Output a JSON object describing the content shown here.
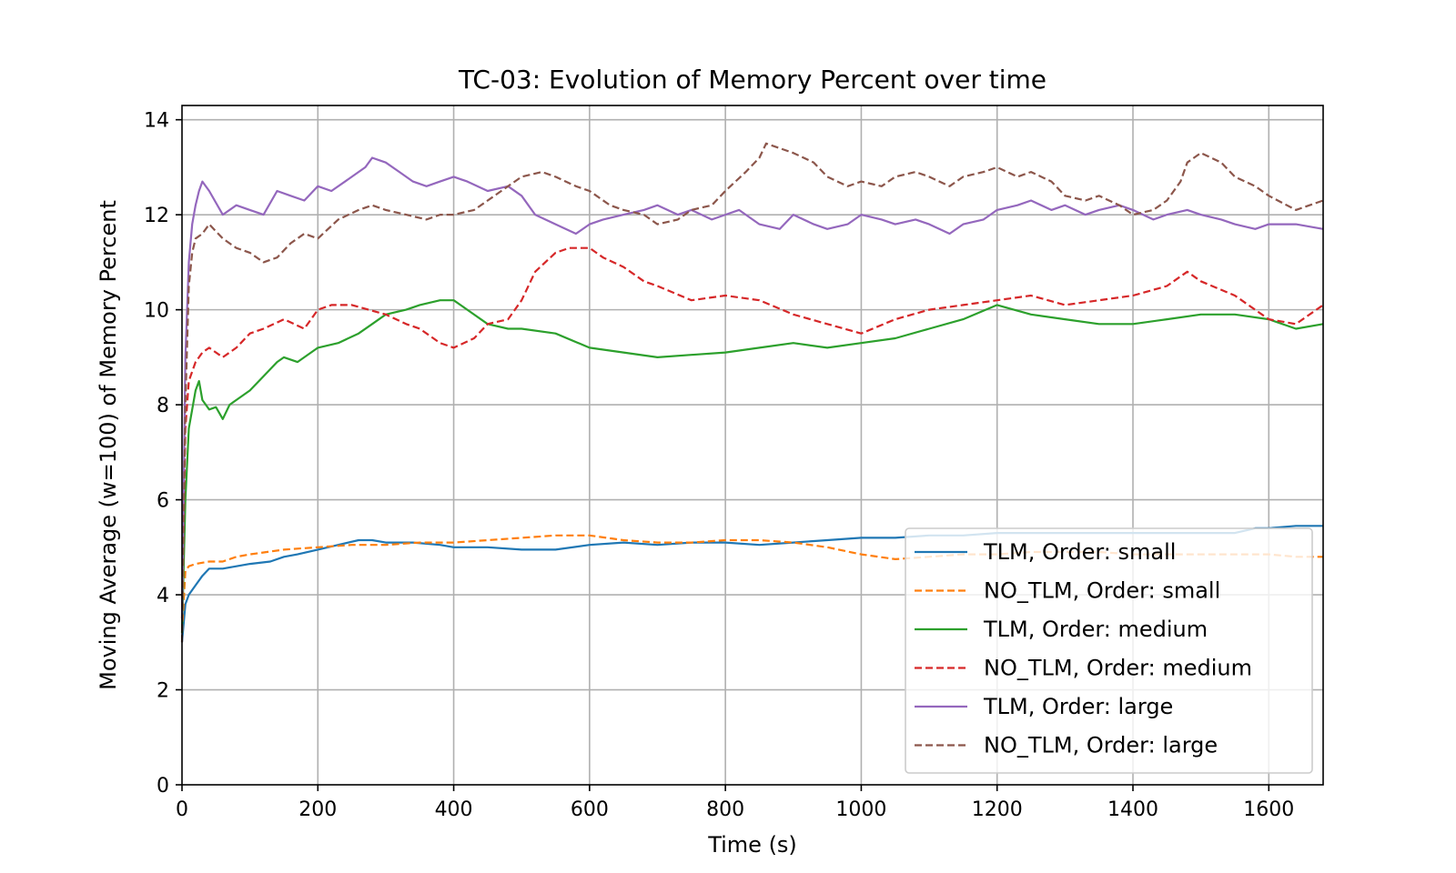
{
  "chart_data": {
    "type": "line",
    "title": "TC-03: Evolution of Memory Percent over time",
    "xlabel": "Time (s)",
    "ylabel": "Moving Average (w=100) of Memory Percent",
    "xlim": [
      0,
      1680
    ],
    "ylim": [
      0,
      14.3
    ],
    "xticks": [
      0,
      200,
      400,
      600,
      800,
      1000,
      1200,
      1400,
      1600
    ],
    "yticks": [
      0,
      2,
      4,
      6,
      8,
      10,
      12,
      14
    ],
    "grid": true,
    "legend_position": "lower right",
    "series": [
      {
        "name": "TLM, Order: small",
        "color": "#1f77b4",
        "dash": "solid",
        "x": [
          0,
          5,
          10,
          20,
          30,
          40,
          60,
          80,
          100,
          130,
          150,
          170,
          200,
          230,
          260,
          280,
          300,
          340,
          380,
          400,
          450,
          500,
          550,
          600,
          650,
          700,
          750,
          800,
          850,
          900,
          950,
          1000,
          1050,
          1100,
          1150,
          1200,
          1250,
          1300,
          1350,
          1400,
          1450,
          1500,
          1550,
          1580,
          1600,
          1640,
          1680
        ],
        "y": [
          3.0,
          3.8,
          4.0,
          4.2,
          4.4,
          4.55,
          4.55,
          4.6,
          4.65,
          4.7,
          4.8,
          4.85,
          4.95,
          5.05,
          5.15,
          5.15,
          5.1,
          5.1,
          5.05,
          5.0,
          5.0,
          4.95,
          4.95,
          5.05,
          5.1,
          5.05,
          5.1,
          5.1,
          5.05,
          5.1,
          5.15,
          5.2,
          5.2,
          5.25,
          5.25,
          5.3,
          5.3,
          5.3,
          5.3,
          5.3,
          5.3,
          5.3,
          5.3,
          5.4,
          5.4,
          5.45,
          5.45
        ]
      },
      {
        "name": "NO_TLM, Order: small",
        "color": "#ff7f0e",
        "dash": "dashed",
        "x": [
          0,
          5,
          10,
          20,
          40,
          60,
          80,
          100,
          150,
          200,
          250,
          300,
          350,
          400,
          450,
          500,
          550,
          600,
          650,
          700,
          750,
          800,
          850,
          900,
          950,
          1000,
          1050,
          1100,
          1150,
          1200,
          1250,
          1300,
          1350,
          1400,
          1450,
          1500,
          1550,
          1600,
          1640,
          1680
        ],
        "y": [
          3.2,
          4.5,
          4.6,
          4.65,
          4.7,
          4.7,
          4.8,
          4.85,
          4.95,
          5.0,
          5.05,
          5.05,
          5.1,
          5.1,
          5.15,
          5.2,
          5.25,
          5.25,
          5.15,
          5.1,
          5.1,
          5.15,
          5.15,
          5.1,
          5.0,
          4.85,
          4.75,
          4.8,
          4.85,
          4.85,
          4.9,
          4.9,
          4.9,
          4.85,
          4.85,
          4.85,
          4.85,
          4.85,
          4.8,
          4.8
        ]
      },
      {
        "name": "TLM, Order: medium",
        "color": "#2ca02c",
        "dash": "solid",
        "x": [
          0,
          5,
          10,
          20,
          25,
          30,
          40,
          50,
          60,
          70,
          80,
          100,
          120,
          140,
          150,
          170,
          200,
          230,
          260,
          280,
          300,
          330,
          350,
          380,
          400,
          420,
          450,
          480,
          500,
          550,
          600,
          650,
          700,
          750,
          800,
          850,
          900,
          950,
          1000,
          1050,
          1100,
          1150,
          1200,
          1250,
          1300,
          1350,
          1400,
          1450,
          1500,
          1550,
          1600,
          1640,
          1680
        ],
        "y": [
          3.2,
          6.0,
          7.5,
          8.3,
          8.5,
          8.1,
          7.9,
          7.95,
          7.7,
          8.0,
          8.1,
          8.3,
          8.6,
          8.9,
          9.0,
          8.9,
          9.2,
          9.3,
          9.5,
          9.7,
          9.9,
          10.0,
          10.1,
          10.2,
          10.2,
          10.0,
          9.7,
          9.6,
          9.6,
          9.5,
          9.2,
          9.1,
          9.0,
          9.05,
          9.1,
          9.2,
          9.3,
          9.2,
          9.3,
          9.4,
          9.6,
          9.8,
          10.1,
          9.9,
          9.8,
          9.7,
          9.7,
          9.8,
          9.9,
          9.9,
          9.8,
          9.6,
          9.7
        ]
      },
      {
        "name": "NO_TLM, Order: medium",
        "color": "#d62728",
        "dash": "dashed",
        "x": [
          0,
          5,
          10,
          20,
          30,
          40,
          60,
          80,
          100,
          120,
          150,
          180,
          200,
          220,
          250,
          300,
          330,
          350,
          380,
          400,
          430,
          450,
          480,
          500,
          520,
          550,
          570,
          600,
          620,
          650,
          680,
          700,
          750,
          800,
          850,
          900,
          950,
          1000,
          1050,
          1100,
          1150,
          1200,
          1250,
          1300,
          1350,
          1400,
          1450,
          1480,
          1500,
          1550,
          1600,
          1640,
          1680
        ],
        "y": [
          3.5,
          7.5,
          8.5,
          8.9,
          9.1,
          9.2,
          9.0,
          9.2,
          9.5,
          9.6,
          9.8,
          9.6,
          10.0,
          10.1,
          10.1,
          9.9,
          9.7,
          9.6,
          9.3,
          9.2,
          9.4,
          9.7,
          9.8,
          10.2,
          10.8,
          11.2,
          11.3,
          11.3,
          11.1,
          10.9,
          10.6,
          10.5,
          10.2,
          10.3,
          10.2,
          9.9,
          9.7,
          9.5,
          9.8,
          10.0,
          10.1,
          10.2,
          10.3,
          10.1,
          10.2,
          10.3,
          10.5,
          10.8,
          10.6,
          10.3,
          9.8,
          9.7,
          10.1
        ]
      },
      {
        "name": "TLM, Order: large",
        "color": "#9467bd",
        "dash": "solid",
        "x": [
          0,
          5,
          10,
          15,
          20,
          25,
          30,
          40,
          60,
          80,
          100,
          120,
          140,
          160,
          180,
          200,
          220,
          250,
          270,
          280,
          300,
          320,
          340,
          360,
          380,
          400,
          420,
          450,
          480,
          500,
          520,
          550,
          580,
          600,
          620,
          650,
          680,
          700,
          730,
          750,
          780,
          800,
          820,
          850,
          880,
          900,
          930,
          950,
          980,
          1000,
          1030,
          1050,
          1080,
          1100,
          1130,
          1150,
          1180,
          1200,
          1230,
          1250,
          1280,
          1300,
          1330,
          1350,
          1380,
          1400,
          1430,
          1450,
          1480,
          1500,
          1530,
          1550,
          1580,
          1600,
          1640,
          1680
        ],
        "y": [
          3.5,
          9.0,
          11.0,
          11.8,
          12.2,
          12.5,
          12.7,
          12.5,
          12.0,
          12.2,
          12.1,
          12.0,
          12.5,
          12.4,
          12.3,
          12.6,
          12.5,
          12.8,
          13.0,
          13.2,
          13.1,
          12.9,
          12.7,
          12.6,
          12.7,
          12.8,
          12.7,
          12.5,
          12.6,
          12.4,
          12.0,
          11.8,
          11.6,
          11.8,
          11.9,
          12.0,
          12.1,
          12.2,
          12.0,
          12.1,
          11.9,
          12.0,
          12.1,
          11.8,
          11.7,
          12.0,
          11.8,
          11.7,
          11.8,
          12.0,
          11.9,
          11.8,
          11.9,
          11.8,
          11.6,
          11.8,
          11.9,
          12.1,
          12.2,
          12.3,
          12.1,
          12.2,
          12.0,
          12.1,
          12.2,
          12.1,
          11.9,
          12.0,
          12.1,
          12.0,
          11.9,
          11.8,
          11.7,
          11.8,
          11.8,
          11.7
        ]
      },
      {
        "name": "NO_TLM, Order: large",
        "color": "#8c564b",
        "dash": "dashed",
        "x": [
          0,
          5,
          10,
          15,
          20,
          30,
          40,
          60,
          80,
          100,
          120,
          140,
          160,
          180,
          200,
          230,
          260,
          280,
          300,
          330,
          360,
          380,
          400,
          430,
          450,
          480,
          500,
          530,
          550,
          580,
          600,
          630,
          650,
          680,
          700,
          730,
          750,
          780,
          800,
          830,
          850,
          860,
          880,
          900,
          930,
          950,
          980,
          1000,
          1030,
          1050,
          1080,
          1100,
          1130,
          1150,
          1180,
          1200,
          1230,
          1250,
          1280,
          1300,
          1330,
          1350,
          1380,
          1400,
          1430,
          1450,
          1470,
          1480,
          1500,
          1530,
          1550,
          1580,
          1600,
          1640,
          1680
        ],
        "y": [
          3.0,
          8.0,
          10.5,
          11.2,
          11.5,
          11.6,
          11.8,
          11.5,
          11.3,
          11.2,
          11.0,
          11.1,
          11.4,
          11.6,
          11.5,
          11.9,
          12.1,
          12.2,
          12.1,
          12.0,
          11.9,
          12.0,
          12.0,
          12.1,
          12.3,
          12.6,
          12.8,
          12.9,
          12.8,
          12.6,
          12.5,
          12.2,
          12.1,
          12.0,
          11.8,
          11.9,
          12.1,
          12.2,
          12.5,
          12.9,
          13.2,
          13.5,
          13.4,
          13.3,
          13.1,
          12.8,
          12.6,
          12.7,
          12.6,
          12.8,
          12.9,
          12.8,
          12.6,
          12.8,
          12.9,
          13.0,
          12.8,
          12.9,
          12.7,
          12.4,
          12.3,
          12.4,
          12.2,
          12.0,
          12.1,
          12.3,
          12.7,
          13.1,
          13.3,
          13.1,
          12.8,
          12.6,
          12.4,
          12.1,
          12.3
        ]
      }
    ]
  }
}
